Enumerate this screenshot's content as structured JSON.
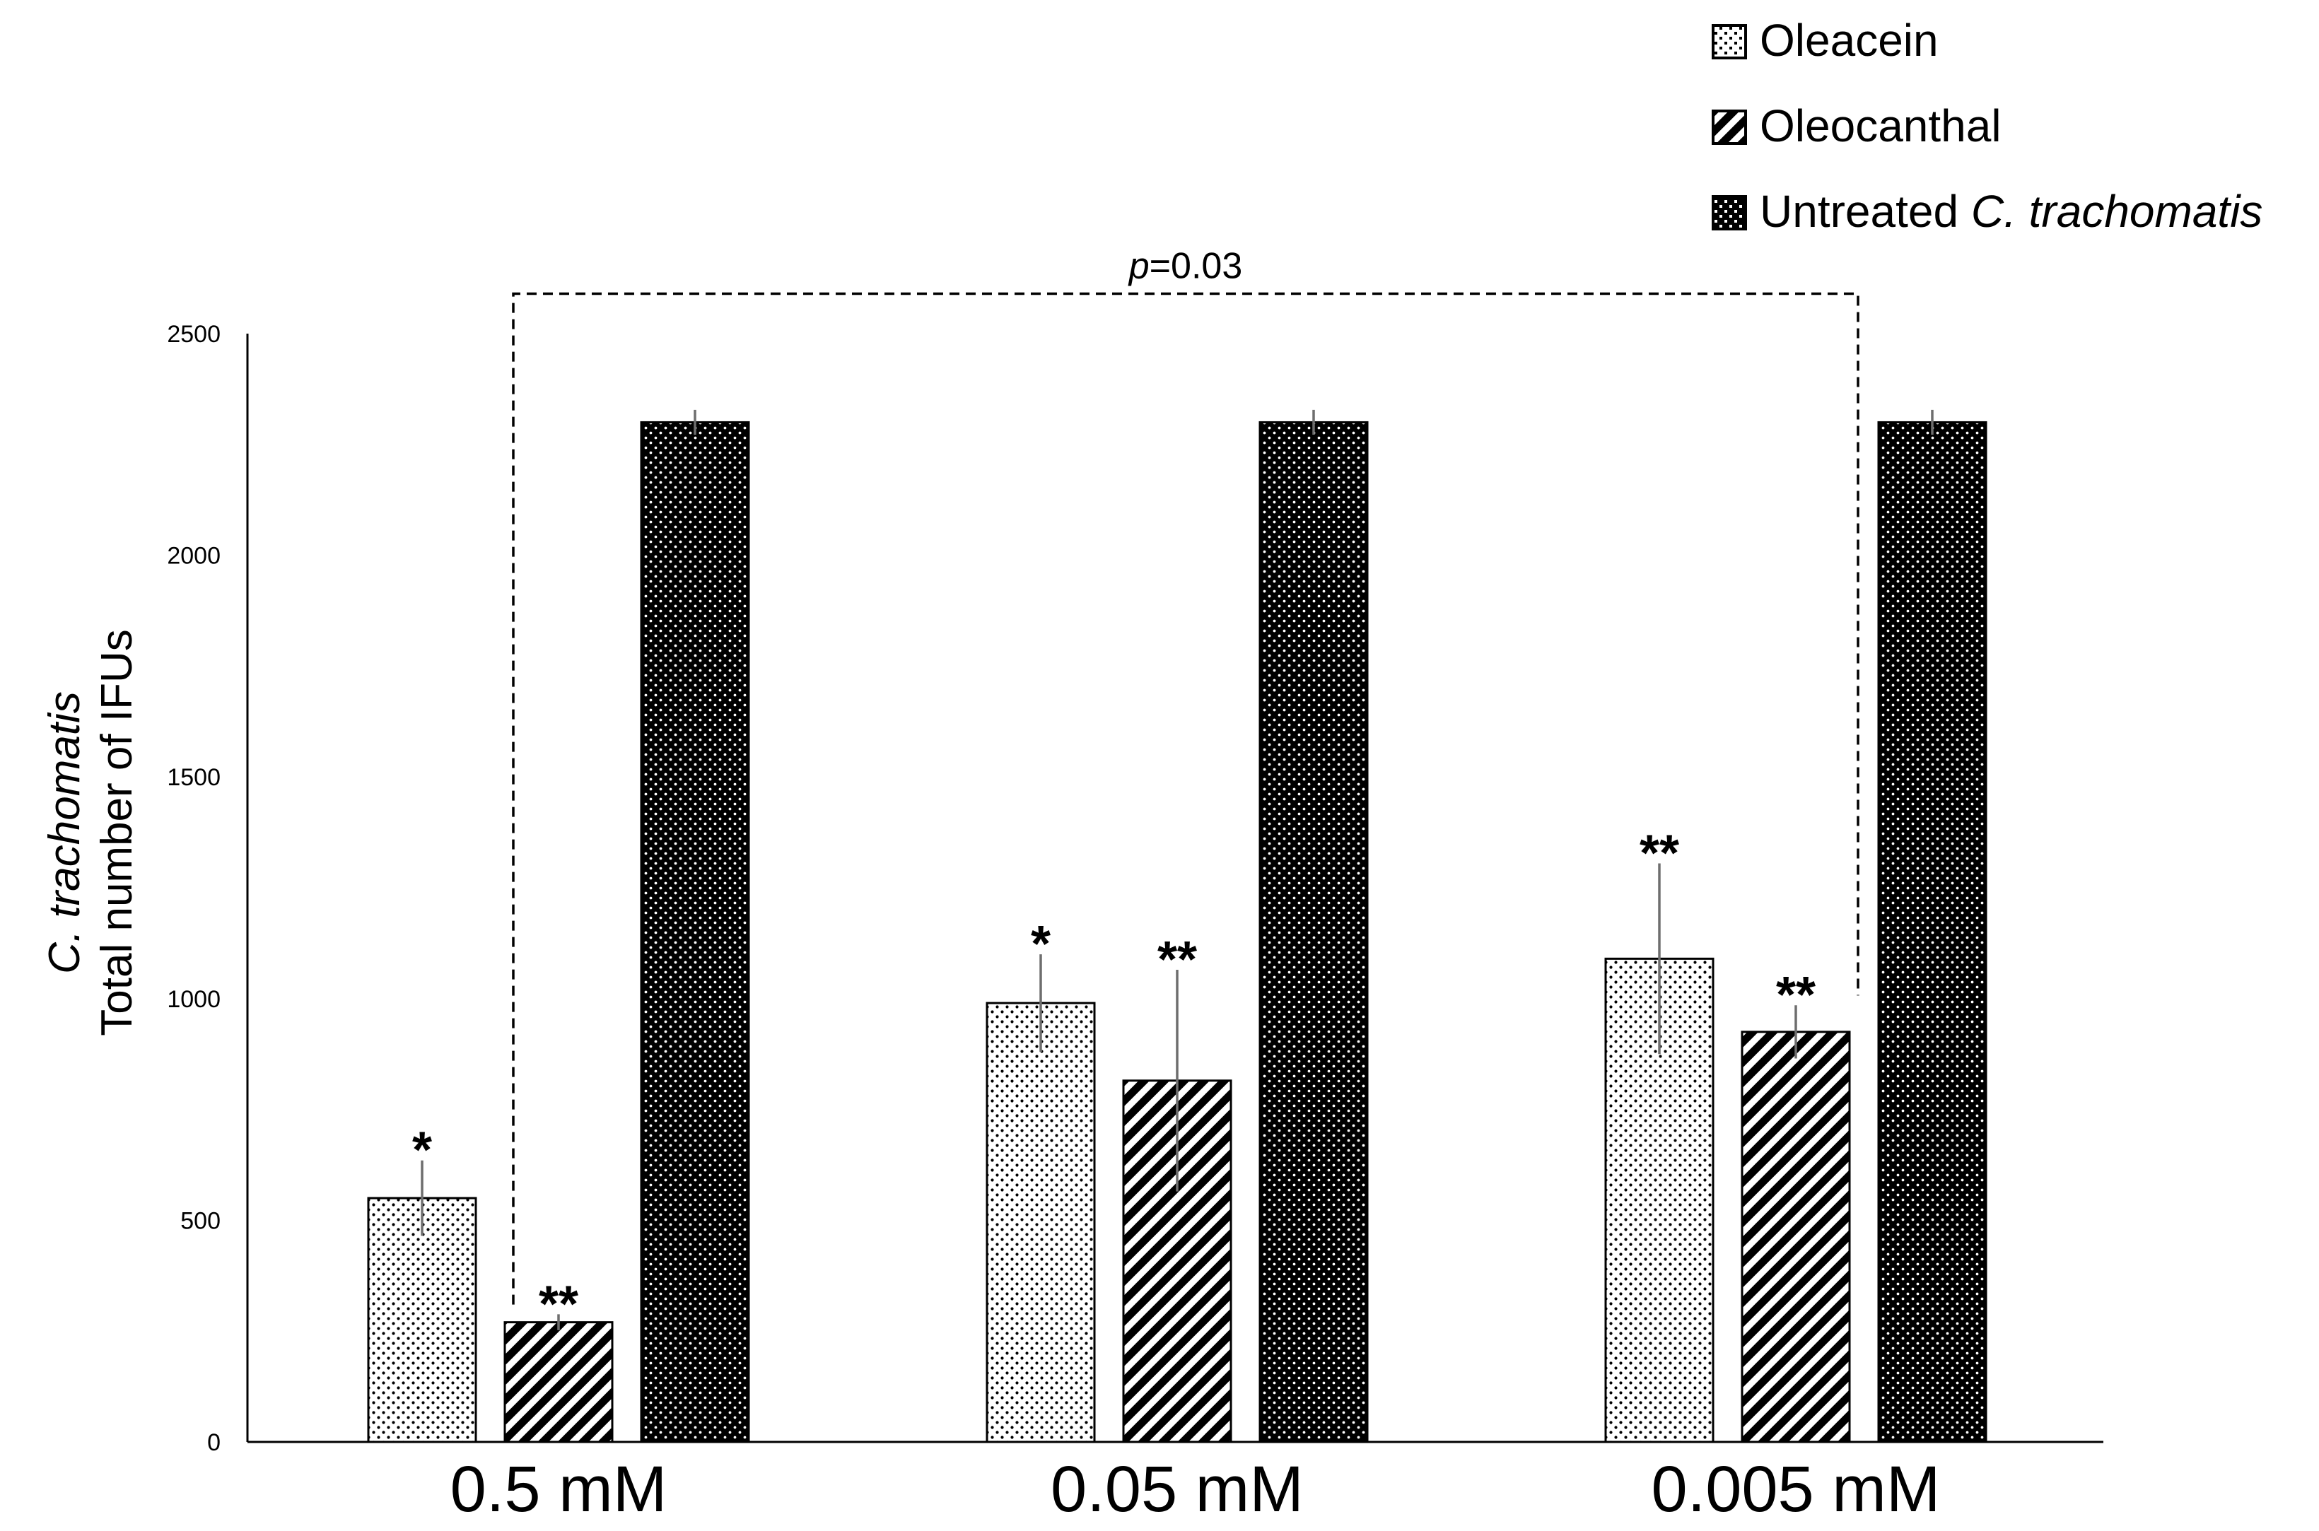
{
  "chart_data": {
    "type": "bar",
    "title": "",
    "categories": [
      "0.5 mM",
      "0.05 mM",
      "0.005 mM"
    ],
    "series": [
      {
        "name": "Oleacein",
        "pattern": "dots-sparse",
        "values": [
          550,
          990,
          1090
        ],
        "errors": [
          85,
          110,
          215
        ],
        "sig": [
          "*",
          "*",
          "**"
        ]
      },
      {
        "name": "Oleocanthal",
        "pattern": "diagonal-stripes",
        "values": [
          270,
          815,
          925
        ],
        "errors": [
          18,
          250,
          60
        ],
        "sig": [
          "**",
          "**",
          "**"
        ]
      },
      {
        "name": "Untreated C. trachomatis",
        "name_plain": "Untreated ",
        "name_italic": "C. trachomatis",
        "pattern": "dots-dense",
        "values": [
          2300,
          2300,
          2300
        ],
        "errors": [
          28,
          28,
          28
        ],
        "sig": [
          "",
          "",
          ""
        ]
      }
    ],
    "ylabel_line1": "C. trachomatis",
    "ylabel_line2": "Total number of IFUs",
    "xlabel": "",
    "ylim": [
      0,
      2500
    ],
    "yticks": [
      0,
      500,
      1000,
      1500,
      2000,
      2500
    ],
    "grid": false,
    "legend_position": "top-right",
    "bracket": {
      "from": {
        "category": 0,
        "series": 1
      },
      "to": {
        "category": 2,
        "series": 1
      },
      "label_italic": "p",
      "label_rest": "=0.03"
    }
  }
}
